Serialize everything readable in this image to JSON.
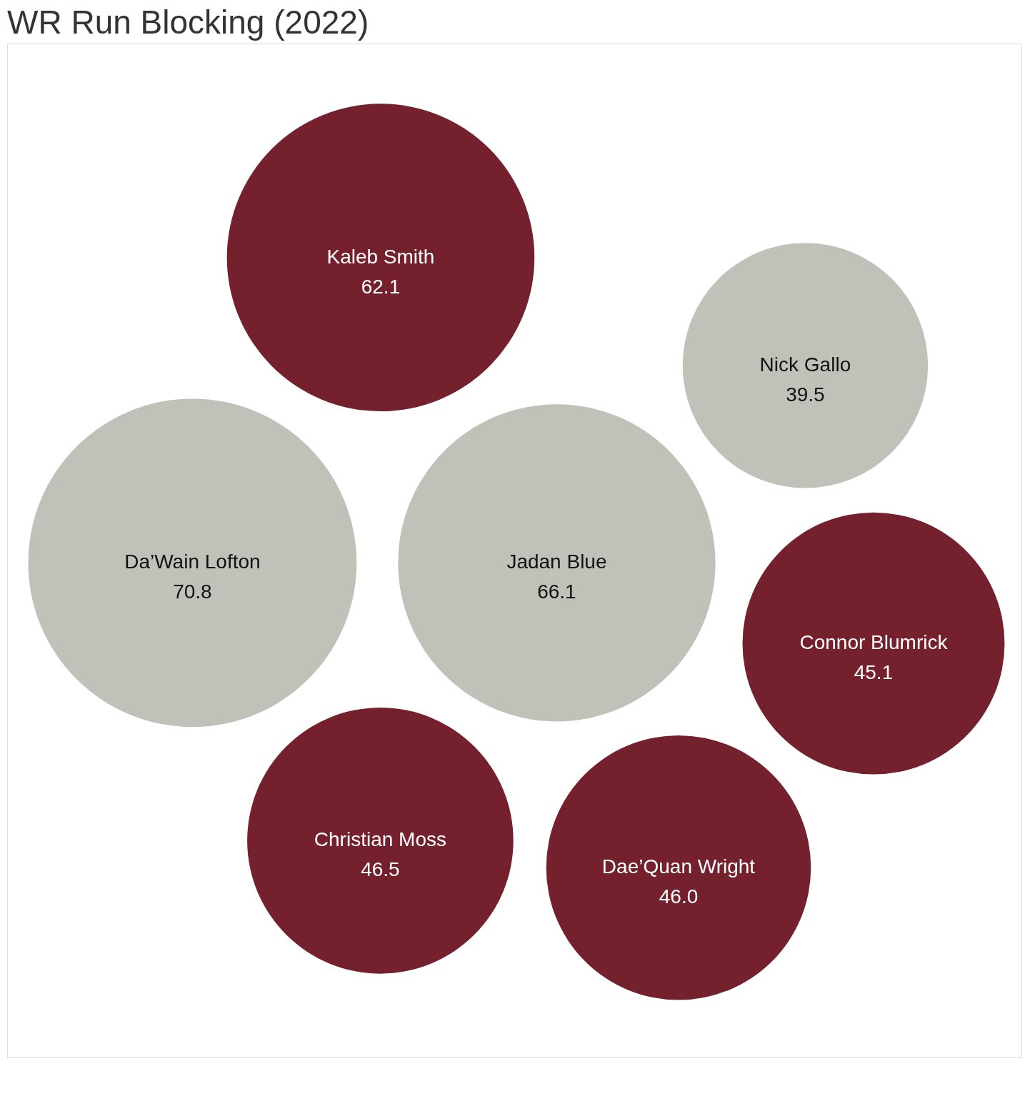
{
  "chart_data": {
    "type": "other",
    "title": "WR Run Blocking (2022)",
    "categories": [
      "Dae’Quan Wright",
      "Jadan Blue",
      "Christian Moss",
      "Connor Blumrick",
      "Kaleb Smith",
      "Da’Wain Lofton",
      "Nick Gallo"
    ],
    "values": [
      46.0,
      66.1,
      46.5,
      45.1,
      62.1,
      70.8,
      39.5
    ],
    "value_labels": [
      "46.0",
      "66.1",
      "46.5",
      "45.1",
      "62.1",
      "70.8",
      "39.5"
    ],
    "colors": [
      "#74212d",
      "#c1c0b9",
      "#74212d",
      "#74212d",
      "#74212d",
      "#c1c0b9",
      "#c1c0b9"
    ],
    "data_labels": true
  }
}
